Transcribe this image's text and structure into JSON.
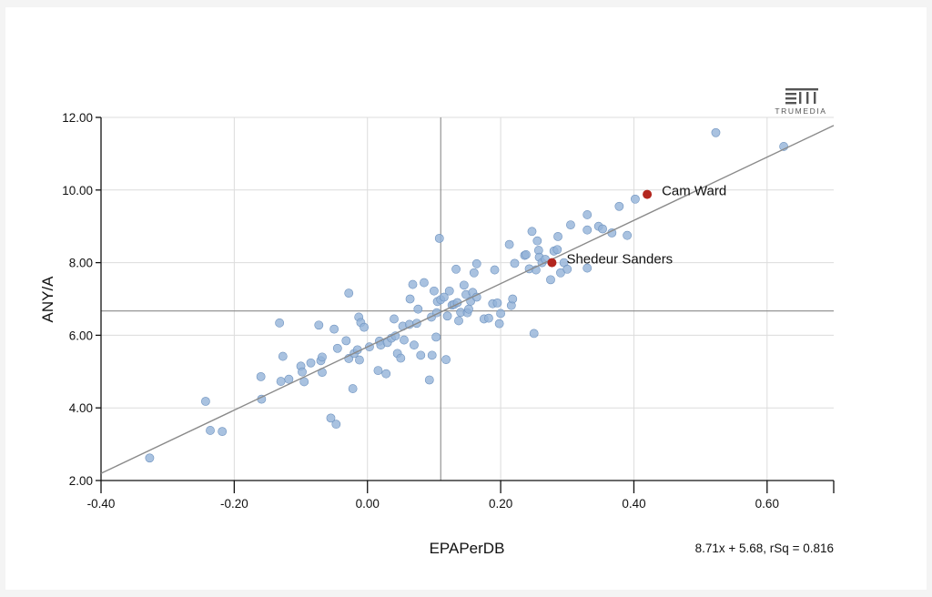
{
  "brand": {
    "name": "TRUMEDIA",
    "logo_icon": "trumedia-logo-icon"
  },
  "chart_data": {
    "type": "scatter",
    "title": "",
    "xlabel": "EPAPerDB",
    "ylabel": "ANY/A",
    "xlim": [
      -0.4,
      0.7
    ],
    "ylim": [
      2.0,
      12.0
    ],
    "xticks": [
      -0.4,
      -0.2,
      0.0,
      0.2,
      0.4,
      0.6
    ],
    "xtick_labels": [
      "-0.40",
      "-0.20",
      "0.00",
      "0.20",
      "0.40",
      "0.60"
    ],
    "yticks": [
      2.0,
      4.0,
      6.0,
      8.0,
      10.0,
      12.0
    ],
    "ytick_labels": [
      "2.00",
      "4.00",
      "6.00",
      "8.00",
      "10.00",
      "12.00"
    ],
    "grid": true,
    "reference_lines": {
      "x_mean": 0.11,
      "y_mean": 6.67
    },
    "trendline": {
      "slope": 8.71,
      "intercept": 5.68,
      "label": "8.71x + 5.68, rSq = 0.816"
    },
    "point_color": "#93b3d8",
    "point_edge": "#6f93bf",
    "highlight_color": "#b3261e",
    "line_color": "#8a8a8a",
    "highlights": [
      {
        "name": "Cam Ward",
        "x": 0.42,
        "y": 9.88
      },
      {
        "name": "Shedeur Sanders",
        "x": 0.277,
        "y": 8.0
      }
    ],
    "points": [
      [
        -0.327,
        2.62
      ],
      [
        -0.243,
        4.18
      ],
      [
        -0.236,
        3.38
      ],
      [
        -0.218,
        3.35
      ],
      [
        -0.16,
        4.86
      ],
      [
        -0.159,
        4.24
      ],
      [
        -0.132,
        6.34
      ],
      [
        -0.127,
        5.42
      ],
      [
        -0.13,
        4.73
      ],
      [
        -0.118,
        4.79
      ],
      [
        -0.1,
        5.15
      ],
      [
        -0.098,
        4.99
      ],
      [
        -0.095,
        4.72
      ],
      [
        -0.085,
        5.24
      ],
      [
        -0.073,
        6.28
      ],
      [
        -0.07,
        5.3
      ],
      [
        -0.068,
        5.4
      ],
      [
        -0.068,
        4.98
      ],
      [
        -0.055,
        3.72
      ],
      [
        -0.05,
        6.17
      ],
      [
        -0.047,
        3.55
      ],
      [
        -0.045,
        5.64
      ],
      [
        -0.032,
        5.85
      ],
      [
        -0.028,
        7.16
      ],
      [
        -0.028,
        5.36
      ],
      [
        -0.022,
        4.53
      ],
      [
        -0.02,
        5.5
      ],
      [
        -0.015,
        5.6
      ],
      [
        -0.012,
        5.32
      ],
      [
        -0.013,
        6.5
      ],
      [
        -0.01,
        6.35
      ],
      [
        -0.005,
        6.22
      ],
      [
        0.003,
        5.68
      ],
      [
        0.016,
        5.03
      ],
      [
        0.018,
        5.84
      ],
      [
        0.02,
        5.73
      ],
      [
        0.028,
        4.94
      ],
      [
        0.03,
        5.8
      ],
      [
        0.036,
        5.92
      ],
      [
        0.04,
        6.45
      ],
      [
        0.042,
        5.98
      ],
      [
        0.045,
        5.5
      ],
      [
        0.05,
        5.37
      ],
      [
        0.053,
        6.25
      ],
      [
        0.055,
        5.87
      ],
      [
        0.063,
        6.3
      ],
      [
        0.064,
        7.0
      ],
      [
        0.068,
        7.4
      ],
      [
        0.07,
        5.73
      ],
      [
        0.074,
        6.33
      ],
      [
        0.076,
        6.72
      ],
      [
        0.08,
        5.45
      ],
      [
        0.085,
        7.45
      ],
      [
        0.093,
        4.77
      ],
      [
        0.096,
        6.5
      ],
      [
        0.097,
        5.45
      ],
      [
        0.1,
        7.22
      ],
      [
        0.103,
        5.95
      ],
      [
        0.104,
        6.62
      ],
      [
        0.105,
        6.93
      ],
      [
        0.108,
        8.67
      ],
      [
        0.11,
        6.98
      ],
      [
        0.115,
        7.05
      ],
      [
        0.118,
        5.33
      ],
      [
        0.12,
        6.53
      ],
      [
        0.123,
        7.22
      ],
      [
        0.127,
        6.83
      ],
      [
        0.13,
        6.85
      ],
      [
        0.133,
        7.82
      ],
      [
        0.135,
        6.9
      ],
      [
        0.137,
        6.4
      ],
      [
        0.14,
        6.63
      ],
      [
        0.145,
        7.38
      ],
      [
        0.148,
        7.12
      ],
      [
        0.15,
        6.62
      ],
      [
        0.152,
        6.72
      ],
      [
        0.155,
        6.94
      ],
      [
        0.158,
        7.18
      ],
      [
        0.16,
        7.72
      ],
      [
        0.164,
        7.05
      ],
      [
        0.164,
        7.97
      ],
      [
        0.175,
        6.45
      ],
      [
        0.182,
        6.47
      ],
      [
        0.188,
        6.87
      ],
      [
        0.191,
        7.8
      ],
      [
        0.195,
        6.89
      ],
      [
        0.198,
        6.32
      ],
      [
        0.2,
        6.6
      ],
      [
        0.213,
        8.5
      ],
      [
        0.216,
        6.82
      ],
      [
        0.218,
        7.0
      ],
      [
        0.221,
        7.98
      ],
      [
        0.236,
        8.2
      ],
      [
        0.238,
        8.22
      ],
      [
        0.243,
        7.83
      ],
      [
        0.247,
        8.86
      ],
      [
        0.25,
        6.05
      ],
      [
        0.253,
        7.8
      ],
      [
        0.255,
        8.6
      ],
      [
        0.257,
        8.34
      ],
      [
        0.258,
        8.15
      ],
      [
        0.262,
        8.0
      ],
      [
        0.267,
        8.09
      ],
      [
        0.275,
        7.53
      ],
      [
        0.28,
        8.32
      ],
      [
        0.285,
        8.36
      ],
      [
        0.286,
        8.72
      ],
      [
        0.29,
        7.72
      ],
      [
        0.295,
        8.0
      ],
      [
        0.3,
        7.82
      ],
      [
        0.305,
        9.04
      ],
      [
        0.33,
        9.32
      ],
      [
        0.33,
        8.9
      ],
      [
        0.33,
        7.85
      ],
      [
        0.347,
        9.0
      ],
      [
        0.353,
        8.93
      ],
      [
        0.367,
        8.82
      ],
      [
        0.378,
        9.55
      ],
      [
        0.39,
        8.75
      ],
      [
        0.402,
        9.75
      ],
      [
        0.523,
        11.58
      ],
      [
        0.625,
        11.2
      ]
    ]
  }
}
